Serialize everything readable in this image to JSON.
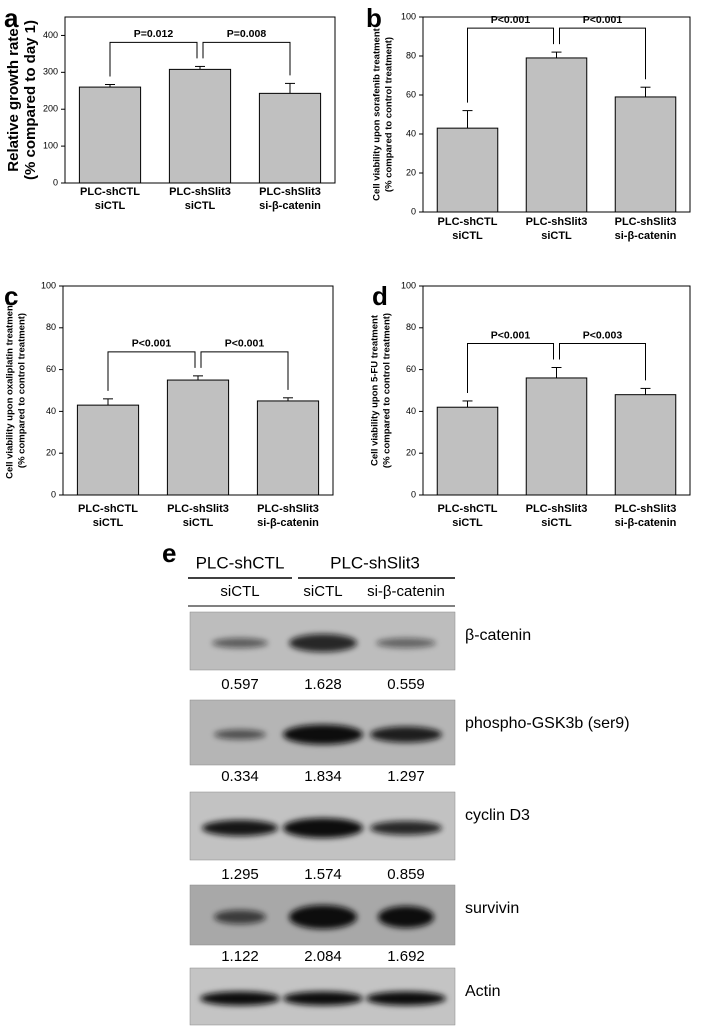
{
  "chart_data": [
    {
      "type": "bar",
      "panel": "a",
      "ylabel": [
        "Relative growth rate",
        "(% compared to day 1)"
      ],
      "categories": [
        [
          "PLC-shCTL",
          "siCTL"
        ],
        [
          "PLC-shSlit3",
          "siCTL"
        ],
        [
          "PLC-shSlit3",
          "si-β-catenin"
        ]
      ],
      "values": [
        260,
        308,
        243
      ],
      "errors": [
        7,
        8,
        27
      ],
      "color": "#c0c0c0",
      "ylim": [
        0,
        450
      ],
      "yticks": [
        0,
        100,
        200,
        300,
        400
      ],
      "annotations": [
        "P=0.012",
        "P=0.008"
      ]
    },
    {
      "type": "bar",
      "panel": "b",
      "ylabel": [
        "Cell viability upon sorafenib treatment",
        "(% compared to control treatment)"
      ],
      "categories": [
        [
          "PLC-shCTL",
          "siCTL"
        ],
        [
          "PLC-shSlit3",
          "siCTL"
        ],
        [
          "PLC-shSlit3",
          "si-β-catenin"
        ]
      ],
      "values": [
        43,
        79,
        59
      ],
      "errors": [
        9,
        3,
        5
      ],
      "color": "#c0c0c0",
      "ylim": [
        0,
        100
      ],
      "yticks": [
        0,
        20,
        40,
        60,
        80,
        100
      ],
      "annotations": [
        "P<0.001",
        "P<0.001"
      ]
    },
    {
      "type": "bar",
      "panel": "c",
      "ylabel": [
        "Cell viability upon oxaliplatin treatment",
        "(% compared to control treatment)"
      ],
      "categories": [
        [
          "PLC-shCTL",
          "siCTL"
        ],
        [
          "PLC-shSlit3",
          "siCTL"
        ],
        [
          "PLC-shSlit3",
          "si-β-catenin"
        ]
      ],
      "values": [
        43,
        55,
        45
      ],
      "errors": [
        3,
        2,
        1.5
      ],
      "color": "#c0c0c0",
      "ylim": [
        0,
        100
      ],
      "yticks": [
        0,
        20,
        40,
        60,
        80,
        100
      ],
      "annotations": [
        "P<0.001",
        "P<0.001"
      ]
    },
    {
      "type": "bar",
      "panel": "d",
      "ylabel": [
        "Cell viability upon 5-FU treatment",
        "(% compared to control treatment)"
      ],
      "categories": [
        [
          "PLC-shCTL",
          "siCTL"
        ],
        [
          "PLC-shSlit3",
          "siCTL"
        ],
        [
          "PLC-shSlit3",
          "si-β-catenin"
        ]
      ],
      "values": [
        42,
        56,
        48
      ],
      "errors": [
        3,
        5,
        3
      ],
      "color": "#c0c0c0",
      "ylim": [
        0,
        100
      ],
      "yticks": [
        0,
        20,
        40,
        60,
        80,
        100
      ],
      "annotations": [
        "P<0.001",
        "P<0.003"
      ]
    }
  ],
  "blot": {
    "panel": "e",
    "groups": [
      "PLC-shCTL",
      "PLC-shSlit3"
    ],
    "lanes": [
      "siCTL",
      "siCTL",
      "si-β-catenin"
    ],
    "rows": [
      {
        "label": "β-catenin",
        "values": [
          0.597,
          1.628,
          0.559
        ]
      },
      {
        "label": "phospho-GSK3b (ser9)",
        "values": [
          0.334,
          1.834,
          1.297
        ]
      },
      {
        "label": "cyclin D3",
        "values": [
          1.295,
          1.574,
          0.859
        ]
      },
      {
        "label": "survivin",
        "values": [
          1.122,
          2.084,
          1.692
        ]
      },
      {
        "label": "Actin"
      }
    ]
  }
}
